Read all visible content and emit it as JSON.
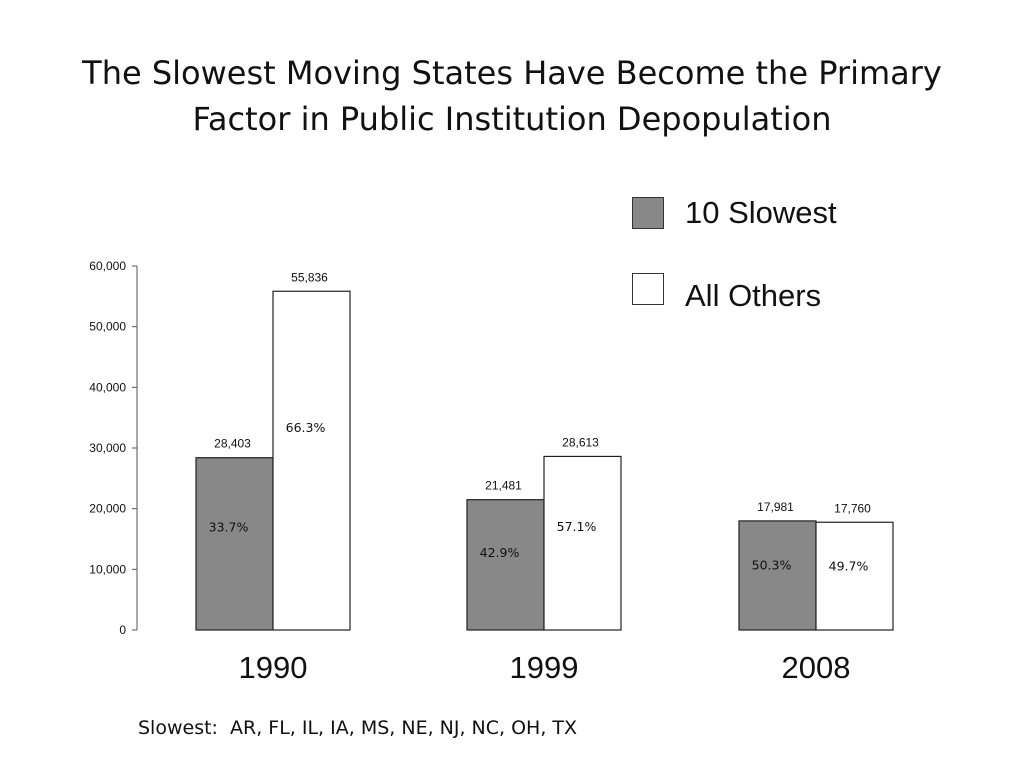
{
  "title_lines": [
    "The Slowest Moving States Have Become the Primary",
    "Factor in Public Institution Depopulation"
  ],
  "legend": [
    {
      "label": "10 Slowest",
      "color": "#888888"
    },
    {
      "label": "All Others",
      "color": "#ffffff"
    }
  ],
  "footnote": {
    "label": "Slowest:",
    "states": "AR, FL, IL, IA, MS, NE, NJ, NC, OH, TX"
  },
  "chart_data": {
    "type": "bar",
    "title": "The Slowest Moving States Have Become the Primary Factor in Public Institution Depopulation",
    "categories": [
      "1990",
      "1999",
      "2008"
    ],
    "series": [
      {
        "name": "10 Slowest",
        "color": "#888888",
        "values": [
          28403,
          21481,
          17981
        ],
        "value_labels": [
          "28,403",
          "21,481",
          "17,981"
        ],
        "percent_labels": [
          "33.7%",
          "42.9%",
          "50.3%"
        ]
      },
      {
        "name": "All Others",
        "color": "#ffffff",
        "values": [
          55836,
          28613,
          17760
        ],
        "value_labels": [
          "55,836",
          "28,613",
          "17,760"
        ],
        "percent_labels": [
          "66.3%",
          "57.1%",
          "49.7%"
        ]
      }
    ],
    "ylim": [
      0,
      60000
    ],
    "yticks": [
      0,
      10000,
      20000,
      30000,
      40000,
      50000,
      60000
    ],
    "ytick_labels": [
      "0",
      "10,000",
      "20,000",
      "30,000",
      "40,000",
      "50,000",
      "60,000"
    ],
    "grid": false,
    "legend_position": "top-right"
  }
}
